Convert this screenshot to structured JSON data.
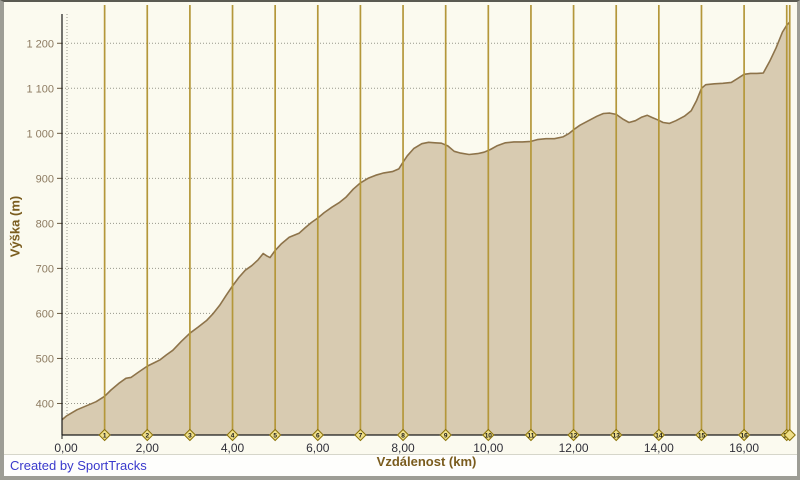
{
  "footer": {
    "credit": "Created by SportTracks"
  },
  "chart_data": {
    "type": "area",
    "title": "",
    "xlabel": "Vzdálenost (km)",
    "ylabel": "Výška (m)",
    "legend": "none",
    "grid": {
      "horizontal": "dotted-gray",
      "vertical": "solid-gold-every-1km"
    },
    "xlim": [
      0,
      17.1
    ],
    "ylim": [
      330,
      1265
    ],
    "x_tick_values": [
      0,
      2,
      4,
      6,
      8,
      10,
      12,
      14,
      16
    ],
    "x_tick_labels": [
      "0,00",
      "2,00",
      "4,00",
      "6,00",
      "8,00",
      "10,00",
      "12,00",
      "14,00",
      "16,00"
    ],
    "y_tick_values": [
      400,
      500,
      600,
      700,
      800,
      900,
      1000,
      1100,
      1200
    ],
    "y_tick_labels": [
      "400",
      "500",
      "600",
      "700",
      "800",
      "900",
      "1 000",
      "1 100",
      "1 200"
    ],
    "km_markers": [
      1,
      2,
      3,
      4,
      5,
      6,
      7,
      8,
      9,
      10,
      11,
      12,
      13,
      14,
      15,
      16,
      17
    ],
    "end_marker_km": 17.07,
    "colors": {
      "plot_bg": "#fbfaef",
      "area_fill": "#d8cbb1",
      "line": "#8d734a",
      "km_line": "#b4973a",
      "marker_fill": "#efdf8a",
      "marker_border": "#8a7208",
      "grid_dotted": "#98988c",
      "axis": "#1a1a1a",
      "y_tick_label": "#8d7b61",
      "x_tick_label": "#30303a",
      "axis_title": "#7a5c1e",
      "credit_text": "#3939cc"
    },
    "series": [
      {
        "name": "Výška (m)",
        "points": [
          [
            0.0,
            364
          ],
          [
            0.1,
            372
          ],
          [
            0.35,
            386
          ],
          [
            0.6,
            396
          ],
          [
            0.8,
            404
          ],
          [
            1.0,
            416
          ],
          [
            1.15,
            430
          ],
          [
            1.35,
            446
          ],
          [
            1.5,
            456
          ],
          [
            1.62,
            458
          ],
          [
            1.8,
            470
          ],
          [
            2.0,
            483
          ],
          [
            2.15,
            490
          ],
          [
            2.3,
            497
          ],
          [
            2.45,
            508
          ],
          [
            2.6,
            518
          ],
          [
            2.8,
            538
          ],
          [
            3.0,
            556
          ],
          [
            3.2,
            570
          ],
          [
            3.4,
            585
          ],
          [
            3.55,
            600
          ],
          [
            3.7,
            618
          ],
          [
            3.85,
            640
          ],
          [
            4.0,
            661
          ],
          [
            4.15,
            680
          ],
          [
            4.3,
            696
          ],
          [
            4.45,
            706
          ],
          [
            4.6,
            719
          ],
          [
            4.72,
            733
          ],
          [
            4.8,
            728
          ],
          [
            4.88,
            724
          ],
          [
            5.0,
            740
          ],
          [
            5.15,
            755
          ],
          [
            5.33,
            769
          ],
          [
            5.56,
            778
          ],
          [
            5.7,
            790
          ],
          [
            5.85,
            802
          ],
          [
            6.0,
            812
          ],
          [
            6.15,
            824
          ],
          [
            6.33,
            836
          ],
          [
            6.5,
            846
          ],
          [
            6.66,
            858
          ],
          [
            6.83,
            876
          ],
          [
            7.0,
            890
          ],
          [
            7.18,
            900
          ],
          [
            7.36,
            907
          ],
          [
            7.55,
            912
          ],
          [
            7.75,
            915
          ],
          [
            7.9,
            921
          ],
          [
            8.0,
            936
          ],
          [
            8.1,
            950
          ],
          [
            8.25,
            966
          ],
          [
            8.44,
            977
          ],
          [
            8.6,
            980
          ],
          [
            8.75,
            979
          ],
          [
            8.9,
            978
          ],
          [
            9.05,
            972
          ],
          [
            9.2,
            960
          ],
          [
            9.35,
            956
          ],
          [
            9.55,
            953
          ],
          [
            9.75,
            955
          ],
          [
            9.9,
            958
          ],
          [
            10.05,
            964
          ],
          [
            10.2,
            972
          ],
          [
            10.4,
            979
          ],
          [
            10.6,
            981
          ],
          [
            10.8,
            981
          ],
          [
            11.0,
            982
          ],
          [
            11.15,
            986
          ],
          [
            11.35,
            988
          ],
          [
            11.55,
            988
          ],
          [
            11.75,
            992
          ],
          [
            11.9,
            1000
          ],
          [
            12.0,
            1008
          ],
          [
            12.15,
            1018
          ],
          [
            12.35,
            1028
          ],
          [
            12.55,
            1038
          ],
          [
            12.7,
            1044
          ],
          [
            12.85,
            1045
          ],
          [
            13.0,
            1042
          ],
          [
            13.15,
            1032
          ],
          [
            13.3,
            1024
          ],
          [
            13.45,
            1028
          ],
          [
            13.6,
            1036
          ],
          [
            13.73,
            1040
          ],
          [
            13.85,
            1035
          ],
          [
            14.0,
            1029
          ],
          [
            14.1,
            1024
          ],
          [
            14.25,
            1022
          ],
          [
            14.4,
            1028
          ],
          [
            14.6,
            1038
          ],
          [
            14.76,
            1050
          ],
          [
            14.88,
            1072
          ],
          [
            15.0,
            1100
          ],
          [
            15.1,
            1108
          ],
          [
            15.3,
            1110
          ],
          [
            15.5,
            1111
          ],
          [
            15.7,
            1113
          ],
          [
            15.85,
            1122
          ],
          [
            16.0,
            1131
          ],
          [
            16.15,
            1133
          ],
          [
            16.3,
            1133
          ],
          [
            16.45,
            1134
          ],
          [
            16.6,
            1160
          ],
          [
            16.75,
            1190
          ],
          [
            16.9,
            1225
          ],
          [
            17.0,
            1240
          ],
          [
            17.07,
            1247
          ]
        ]
      }
    ]
  }
}
